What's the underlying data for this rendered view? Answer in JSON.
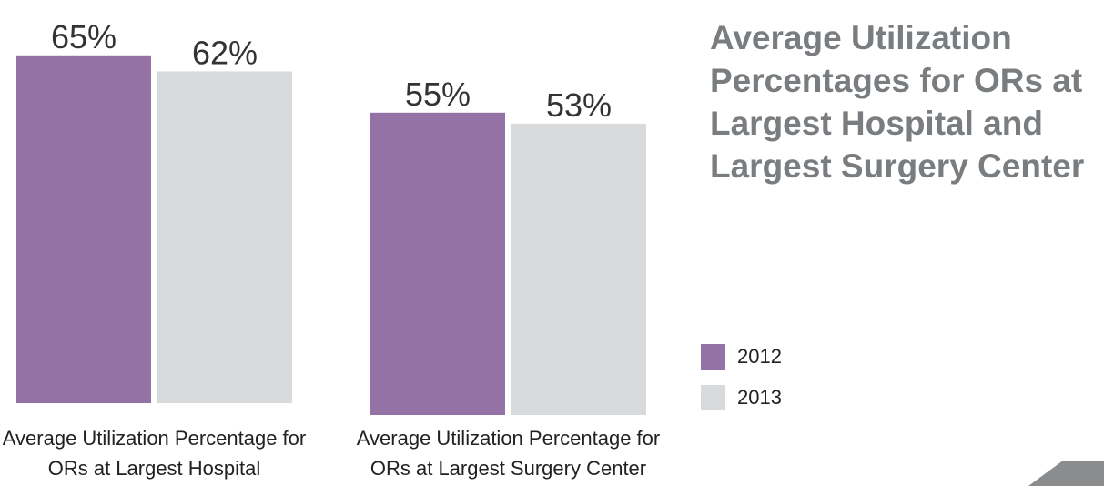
{
  "chart_data": {
    "type": "bar",
    "title": "Average Utilization Percentages for ORs at Largest Hospital and Largest Surgery Center",
    "categories": [
      "Average Utilization Percentage for ORs at Largest Hospital",
      "Average Utilization Percentage for ORs at Largest Surgery Center"
    ],
    "series": [
      {
        "name": "2012",
        "color": "#9472a6",
        "values": [
          65,
          55
        ],
        "value_labels": [
          "65%",
          "55%"
        ]
      },
      {
        "name": "2013",
        "color": "#d9dadb",
        "values": [
          62,
          53
        ],
        "value_labels": [
          "62%",
          "53%"
        ]
      }
    ],
    "legend": "right"
  }
}
